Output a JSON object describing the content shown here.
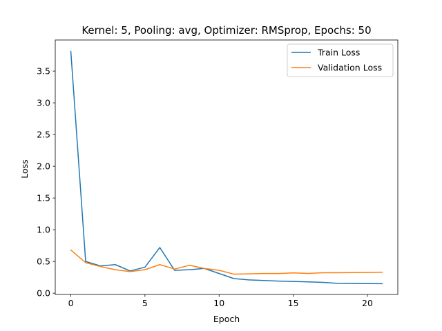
{
  "chart_data": {
    "type": "line",
    "title": "Kernel: 5, Pooling: avg, Optimizer: RMSprop, Epochs: 50",
    "xlabel": "Epoch",
    "ylabel": "Loss",
    "xlim": [
      -1.05,
      22.05
    ],
    "ylim": [
      -0.02,
      3.99
    ],
    "xticks": [
      0,
      5,
      10,
      15,
      20
    ],
    "yticks": [
      0.0,
      0.5,
      1.0,
      1.5,
      2.0,
      2.5,
      3.0,
      3.5
    ],
    "legend_position": "top-right",
    "grid": false,
    "x": [
      0,
      1,
      2,
      3,
      4,
      5,
      6,
      7,
      8,
      9,
      10,
      11,
      12,
      13,
      14,
      15,
      16,
      17,
      18,
      19,
      20,
      21
    ],
    "series": [
      {
        "name": "Train Loss",
        "color": "#1f77b4",
        "values": [
          3.81,
          0.5,
          0.43,
          0.45,
          0.35,
          0.41,
          0.72,
          0.36,
          0.37,
          0.39,
          0.31,
          0.23,
          0.21,
          0.2,
          0.19,
          0.185,
          0.178,
          0.17,
          0.155,
          0.153,
          0.151,
          0.15
        ]
      },
      {
        "name": "Validation Loss",
        "color": "#ff7f0e",
        "values": [
          0.68,
          0.48,
          0.42,
          0.37,
          0.34,
          0.37,
          0.45,
          0.38,
          0.44,
          0.39,
          0.36,
          0.3,
          0.305,
          0.31,
          0.31,
          0.32,
          0.312,
          0.322,
          0.322,
          0.325,
          0.327,
          0.33
        ]
      }
    ]
  }
}
